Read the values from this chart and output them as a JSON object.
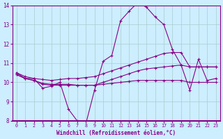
{
  "xlabel": "Windchill (Refroidissement éolien,°C)",
  "bg_color": "#cceeff",
  "grid_color": "#aacccc",
  "line_color": "#880088",
  "xlim": [
    -0.5,
    23.5
  ],
  "ylim": [
    8,
    14
  ],
  "xticks": [
    0,
    1,
    2,
    3,
    4,
    5,
    6,
    7,
    8,
    9,
    10,
    11,
    12,
    13,
    14,
    15,
    16,
    17,
    18,
    19,
    20,
    21,
    22,
    23
  ],
  "yticks": [
    8,
    9,
    10,
    11,
    12,
    13,
    14
  ],
  "series": [
    {
      "x": [
        0,
        1,
        2,
        3,
        4,
        5,
        6,
        7,
        8,
        9,
        10,
        11,
        12,
        13,
        14,
        15,
        16,
        17,
        18,
        19,
        20,
        21,
        22,
        23
      ],
      "y": [
        10.5,
        10.2,
        10.2,
        9.7,
        9.8,
        10.0,
        8.6,
        8.0,
        7.85,
        9.6,
        11.1,
        11.4,
        13.2,
        13.7,
        14.15,
        13.9,
        13.4,
        13.0,
        11.7,
        10.9,
        9.6,
        11.2,
        10.1,
        10.2
      ]
    },
    {
      "x": [
        0,
        1,
        2,
        3,
        4,
        5,
        6,
        7,
        8,
        9,
        10,
        11,
        12,
        13,
        14,
        15,
        16,
        17,
        18,
        19,
        20,
        21,
        22,
        23
      ],
      "y": [
        10.5,
        10.3,
        10.2,
        10.15,
        10.1,
        10.15,
        10.2,
        10.2,
        10.25,
        10.3,
        10.45,
        10.6,
        10.75,
        10.9,
        11.05,
        11.2,
        11.35,
        11.5,
        11.55,
        11.55,
        10.8,
        10.8,
        10.8,
        10.8
      ]
    },
    {
      "x": [
        0,
        1,
        2,
        3,
        4,
        5,
        6,
        7,
        8,
        9,
        10,
        11,
        12,
        13,
        14,
        15,
        16,
        17,
        18,
        19,
        20,
        21,
        22,
        23
      ],
      "y": [
        10.4,
        10.2,
        10.1,
        9.95,
        9.9,
        9.9,
        9.9,
        9.85,
        9.85,
        9.85,
        10.0,
        10.15,
        10.3,
        10.45,
        10.6,
        10.7,
        10.75,
        10.8,
        10.85,
        10.9,
        10.8,
        10.8,
        10.8,
        10.8
      ]
    },
    {
      "x": [
        0,
        1,
        2,
        3,
        4,
        5,
        6,
        7,
        8,
        9,
        10,
        11,
        12,
        13,
        14,
        15,
        16,
        17,
        18,
        19,
        20,
        21,
        22,
        23
      ],
      "y": [
        10.4,
        10.2,
        10.1,
        9.9,
        9.85,
        9.85,
        9.85,
        9.85,
        9.85,
        9.85,
        9.9,
        9.95,
        10.0,
        10.05,
        10.1,
        10.1,
        10.1,
        10.1,
        10.1,
        10.1,
        10.0,
        10.0,
        10.0,
        10.0
      ]
    }
  ]
}
